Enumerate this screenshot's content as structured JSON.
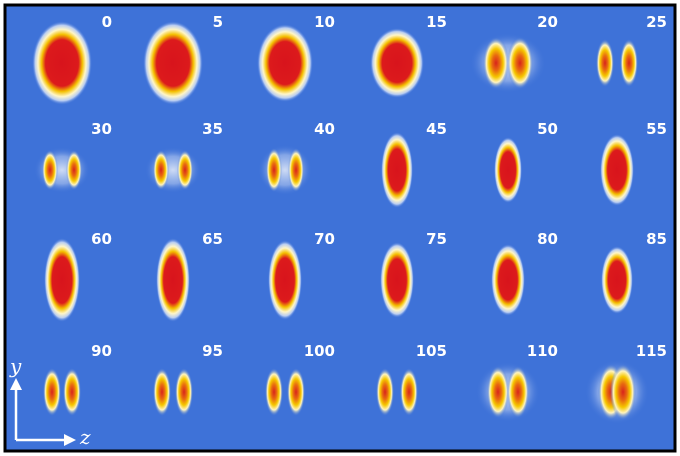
{
  "panels": [
    0,
    5,
    10,
    15,
    20,
    25,
    30,
    35,
    40,
    45,
    50,
    55,
    60,
    65,
    70,
    75,
    80,
    85,
    90,
    95,
    100,
    105,
    110,
    115
  ],
  "axes": {
    "vertical": "y",
    "horizontal": "z"
  }
}
